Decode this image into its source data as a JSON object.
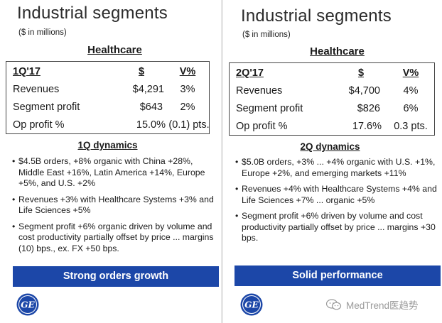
{
  "units": "($ in millions)",
  "left": {
    "title": "Industrial segments",
    "segment": "Healthcare",
    "metrics": {
      "header": [
        "1Q'17",
        "$",
        "V%"
      ],
      "rows": [
        [
          "Revenues",
          "$4,291",
          "3%"
        ],
        [
          "Segment profit",
          "$643",
          "2%"
        ],
        [
          "Op profit %",
          "15.0%",
          "(0.1) pts."
        ]
      ]
    },
    "dynamics_title": "1Q dynamics",
    "bullets": [
      "$4.5B orders, +8% organic with China +28%, Middle East +16%, Latin America +14%, Europe +5%, and U.S. +2%",
      "Revenues +3% with Healthcare Systems +3% and Life Sciences +5%",
      "Segment profit +6% organic driven by volume and cost productivity partially offset by price ... margins (10) bps., ex. FX +50 bps."
    ],
    "banner": "Strong orders growth"
  },
  "right": {
    "title": "Industrial segments",
    "segment": "Healthcare",
    "metrics": {
      "header": [
        "2Q'17",
        "$",
        "V%"
      ],
      "rows": [
        [
          "Revenues",
          "$4,700",
          "4%"
        ],
        [
          "Segment profit",
          "$826",
          "6%"
        ],
        [
          "Op profit %",
          "17.6%",
          "0.3 pts."
        ]
      ]
    },
    "dynamics_title": "2Q dynamics",
    "bullets": [
      "$5.0B orders, +3% ... +4% organic with U.S. +1%, Europe +2%, and emerging markets +11%",
      "Revenues +4% with Healthcare Systems +4% and Life Sciences +7% ... organic +5%",
      "Segment profit +6% driven by volume and cost productivity partially offset by price ... margins +30 bps."
    ],
    "banner": "Solid performance"
  },
  "logo_text": "GE",
  "watermark": "MedTrend医趋势",
  "colors": {
    "banner": "#1c47a8",
    "logo": "#1c47a8"
  }
}
